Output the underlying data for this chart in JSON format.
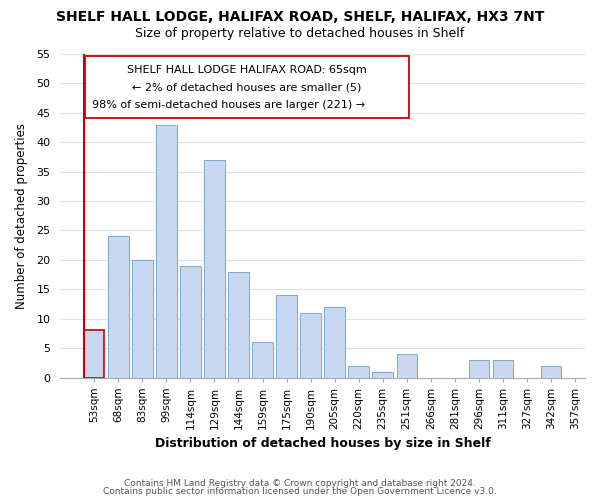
{
  "title": "SHELF HALL LODGE, HALIFAX ROAD, SHELF, HALIFAX, HX3 7NT",
  "subtitle": "Size of property relative to detached houses in Shelf",
  "xlabel": "Distribution of detached houses by size in Shelf",
  "ylabel": "Number of detached properties",
  "bar_labels": [
    "53sqm",
    "68sqm",
    "83sqm",
    "99sqm",
    "114sqm",
    "129sqm",
    "144sqm",
    "159sqm",
    "175sqm",
    "190sqm",
    "205sqm",
    "220sqm",
    "235sqm",
    "251sqm",
    "266sqm",
    "281sqm",
    "296sqm",
    "311sqm",
    "327sqm",
    "342sqm",
    "357sqm"
  ],
  "bar_heights": [
    8,
    24,
    20,
    43,
    19,
    37,
    18,
    6,
    14,
    11,
    12,
    2,
    1,
    4,
    0,
    0,
    3,
    3,
    0,
    2,
    0
  ],
  "bar_color": "#c8d8f0",
  "bar_edge_color": "#7aaad0",
  "highlight_bar_index": 0,
  "highlight_edge_color": "#cc0000",
  "vline_color": "#cc0000",
  "ylim": [
    0,
    55
  ],
  "yticks": [
    0,
    5,
    10,
    15,
    20,
    25,
    30,
    35,
    40,
    45,
    50,
    55
  ],
  "annotation_title": "SHELF HALL LODGE HALIFAX ROAD: 65sqm",
  "annotation_line1": "← 2% of detached houses are smaller (5)",
  "annotation_line2": "98% of semi-detached houses are larger (221) →",
  "footer1": "Contains HM Land Registry data © Crown copyright and database right 2024.",
  "footer2": "Contains public sector information licensed under the Open Government Licence v3.0.",
  "background_color": "#ffffff",
  "grid_color": "#d8e4f0",
  "title_fontsize": 10,
  "subtitle_fontsize": 9
}
